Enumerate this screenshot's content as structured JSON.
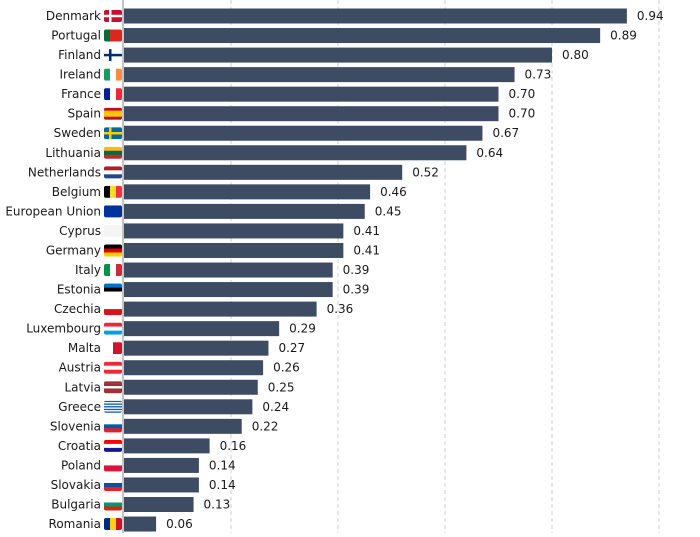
{
  "chart_data": {
    "type": "bar",
    "orientation": "horizontal",
    "title": "",
    "xlabel": "",
    "ylabel": "",
    "xlim": [
      0,
      1.0
    ],
    "grid": "vertical dashed",
    "gridlines": [
      0.2,
      0.4,
      0.6,
      0.8,
      1.0
    ],
    "bar_color": "#3d4b63",
    "categories": [
      "Denmark",
      "Portugal",
      "Finland",
      "Ireland",
      "France",
      "Spain",
      "Sweden",
      "Lithuania",
      "Netherlands",
      "Belgium",
      "European Union",
      "Cyprus",
      "Germany",
      "Italy",
      "Estonia",
      "Czechia",
      "Luxembourg",
      "Malta",
      "Austria",
      "Latvia",
      "Greece",
      "Slovenia",
      "Croatia",
      "Poland",
      "Slovakia",
      "Bulgaria",
      "Romania"
    ],
    "values": [
      0.94,
      0.89,
      0.8,
      0.73,
      0.7,
      0.7,
      0.67,
      0.64,
      0.52,
      0.46,
      0.45,
      0.41,
      0.41,
      0.39,
      0.39,
      0.36,
      0.29,
      0.27,
      0.26,
      0.25,
      0.24,
      0.22,
      0.16,
      0.14,
      0.14,
      0.13,
      0.06
    ],
    "value_labels": [
      "0.94",
      "0.89",
      "0.80",
      "0.73",
      "0.70",
      "0.70",
      "0.67",
      "0.64",
      "0.52",
      "0.46",
      "0.45",
      "0.41",
      "0.41",
      "0.39",
      "0.39",
      "0.36",
      "0.29",
      "0.27",
      "0.26",
      "0.25",
      "0.24",
      "0.22",
      "0.16",
      "0.14",
      "0.14",
      "0.13",
      "0.06"
    ],
    "flags": [
      {
        "t": "nordic",
        "bg": "#c8102e",
        "cross": "#ffffff"
      },
      {
        "t": "v",
        "c": [
          "#046a38",
          "#da291c",
          "#da291c"
        ]
      },
      {
        "t": "nordic",
        "bg": "#ffffff",
        "cross": "#002f6c"
      },
      {
        "t": "v",
        "c": [
          "#169b62",
          "#ffffff",
          "#ff883e"
        ]
      },
      {
        "t": "v",
        "c": [
          "#002395",
          "#ffffff",
          "#ed2939"
        ]
      },
      {
        "t": "h",
        "c": [
          "#c60b1e",
          "#ffc400",
          "#ffc400",
          "#c60b1e"
        ]
      },
      {
        "t": "nordic",
        "bg": "#006aa7",
        "cross": "#fecc00"
      },
      {
        "t": "h",
        "c": [
          "#fdb913",
          "#006a44",
          "#c1272d"
        ]
      },
      {
        "t": "h",
        "c": [
          "#ae1c28",
          "#ffffff",
          "#21468b"
        ]
      },
      {
        "t": "v",
        "c": [
          "#000000",
          "#fdda24",
          "#ef3340"
        ]
      },
      {
        "t": "h",
        "c": [
          "#003399"
        ]
      },
      {
        "t": "h",
        "c": [
          "#f4f4f4"
        ]
      },
      {
        "t": "h",
        "c": [
          "#000000",
          "#dd0000",
          "#ffce00"
        ]
      },
      {
        "t": "v",
        "c": [
          "#009246",
          "#ffffff",
          "#ce2b37"
        ]
      },
      {
        "t": "h",
        "c": [
          "#0072ce",
          "#000000",
          "#ffffff"
        ]
      },
      {
        "t": "h",
        "c": [
          "#ffffff",
          "#d7141a"
        ]
      },
      {
        "t": "h",
        "c": [
          "#ed2939",
          "#ffffff",
          "#00a1de"
        ]
      },
      {
        "t": "v",
        "c": [
          "#ffffff",
          "#cf142b"
        ]
      },
      {
        "t": "h",
        "c": [
          "#ed2939",
          "#ffffff",
          "#ed2939"
        ]
      },
      {
        "t": "h",
        "c": [
          "#9e3039",
          "#9e3039",
          "#ffffff",
          "#9e3039",
          "#9e3039"
        ]
      },
      {
        "t": "h",
        "c": [
          "#0d5eaf",
          "#ffffff",
          "#0d5eaf",
          "#ffffff",
          "#0d5eaf",
          "#ffffff",
          "#0d5eaf",
          "#ffffff",
          "#0d5eaf"
        ]
      },
      {
        "t": "h",
        "c": [
          "#ffffff",
          "#005da4",
          "#ed1c24"
        ]
      },
      {
        "t": "h",
        "c": [
          "#ff0000",
          "#ffffff",
          "#171796"
        ]
      },
      {
        "t": "h",
        "c": [
          "#ffffff",
          "#dc143c"
        ]
      },
      {
        "t": "h",
        "c": [
          "#ffffff",
          "#0b4ea2",
          "#ee1c25"
        ]
      },
      {
        "t": "h",
        "c": [
          "#ffffff",
          "#00966e",
          "#d62612"
        ]
      },
      {
        "t": "v",
        "c": [
          "#002b7f",
          "#fcd116",
          "#ce1126"
        ]
      }
    ]
  }
}
